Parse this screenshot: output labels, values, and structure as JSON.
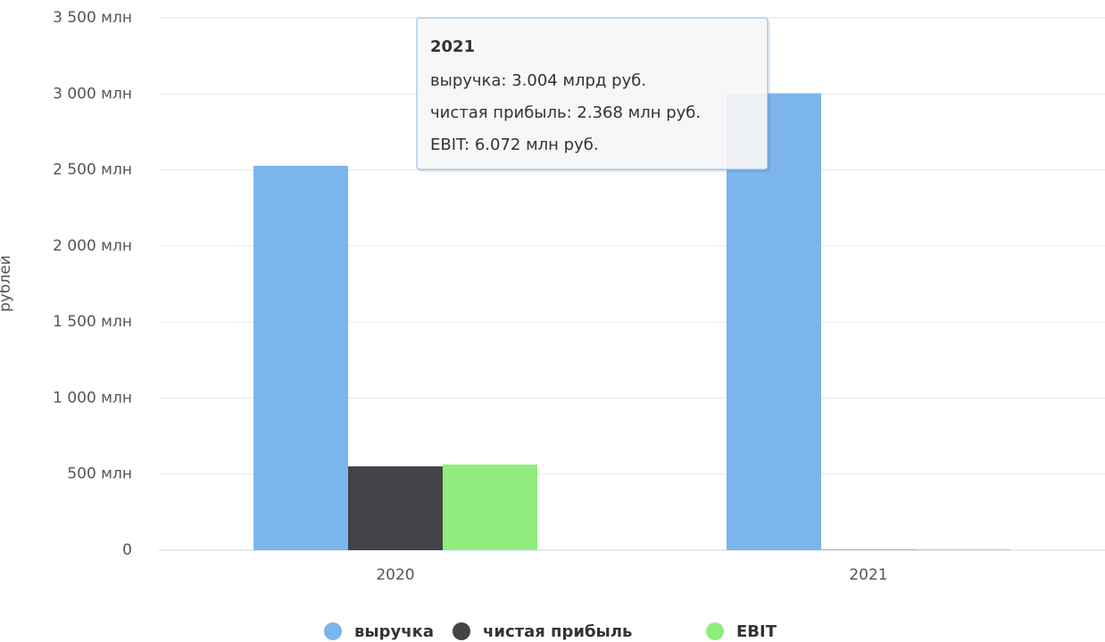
{
  "chart_data": {
    "type": "bar",
    "y_axis_label": "рублей",
    "categories": [
      "2020",
      "2021"
    ],
    "series": [
      {
        "name": "выручка",
        "color": "#7cb5ec",
        "values": [
          2527,
          3004
        ]
      },
      {
        "name": "чистая прибыль",
        "color": "#434348",
        "values": [
          551,
          2.368
        ]
      },
      {
        "name": "EBIT",
        "color": "#90ed7d",
        "values": [
          563,
          6.072
        ]
      }
    ],
    "ylim": [
      0,
      3500
    ],
    "yticks": [
      0,
      {
        "value": 500,
        "label": "500 млн"
      },
      {
        "value": 1000,
        "label": "1 000 млн"
      },
      {
        "value": 1500,
        "label": "1 500 млн"
      },
      {
        "value": 2000,
        "label": "2 000 млн"
      },
      {
        "value": 2500,
        "label": "2 500 млн"
      },
      {
        "value": 3000,
        "label": "3 000 млн"
      },
      {
        "value": 3500,
        "label": "3 500 млн"
      }
    ],
    "grid": true,
    "legend": "bottom",
    "tooltip": {
      "title": "2021",
      "lines": [
        "выручка: 3.004 млрд руб.",
        "чистая прибыль: 2.368 млн руб.",
        "EBIT: 6.072 млн руб."
      ]
    }
  }
}
